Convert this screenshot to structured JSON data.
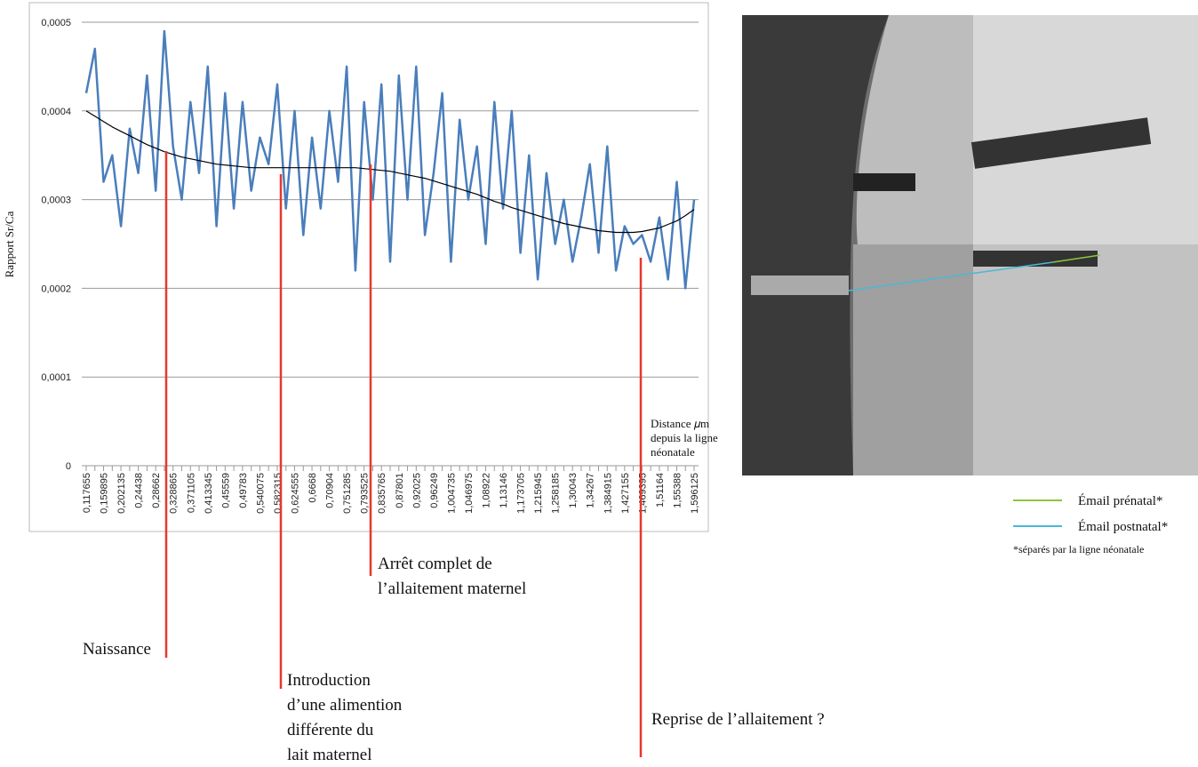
{
  "chart_data": {
    "type": "line",
    "y_label": "Rapport Sr/Ca",
    "x_label": [
      "Distance 𝜇m",
      "depuis la ligne",
      "néonatale"
    ],
    "categories": [
      "0,117655",
      null,
      "0,159895",
      null,
      "0,202135",
      null,
      "0,24438",
      null,
      "0,28662",
      null,
      "0,328865",
      null,
      "0,371105",
      null,
      "0,413345",
      null,
      "0,45559",
      null,
      "0,49783",
      null,
      "0,540075",
      null,
      "0,582315",
      null,
      "0,624555",
      null,
      "0,6668",
      null,
      "0,70904",
      null,
      "0,751285",
      null,
      "0,793525",
      null,
      "0,835765",
      null,
      "0,87801",
      null,
      "0,92025",
      null,
      "0,96249",
      null,
      "1,004735",
      null,
      "1,046975",
      null,
      "1,08922",
      null,
      "1,13146",
      null,
      "1,173705",
      null,
      "1,215945",
      null,
      "1,258185",
      null,
      "1,30043",
      null,
      "1,34267",
      null,
      "1,384915",
      null,
      "1,427155",
      null,
      "1,469395",
      null,
      "1,51164",
      null,
      "1,55388",
      null,
      "1,596125"
    ],
    "series": [
      {
        "color": "#4a7ebb",
        "values": [
          0.00042,
          0.00047,
          0.00032,
          0.00035,
          0.00027,
          0.00038,
          0.00033,
          0.00044,
          0.00031,
          0.00049,
          0.00036,
          0.0003,
          0.00041,
          0.00033,
          0.00045,
          0.00027,
          0.00042,
          0.00029,
          0.00041,
          0.00031,
          0.00037,
          0.00034,
          0.00043,
          0.00029,
          0.0004,
          0.00026,
          0.00037,
          0.00029,
          0.0004,
          0.00032,
          0.00045,
          0.00022,
          0.00041,
          0.0003,
          0.00043,
          0.00023,
          0.00044,
          0.0003,
          0.00045,
          0.00026,
          0.00033,
          0.00042,
          0.00023,
          0.00039,
          0.0003,
          0.00036,
          0.00025,
          0.00041,
          0.00029,
          0.0004,
          0.00024,
          0.00035,
          0.00021,
          0.00033,
          0.00025,
          0.0003,
          0.00023,
          0.00028,
          0.00034,
          0.00024,
          0.00036,
          0.00022,
          0.00027,
          0.00025,
          0.00026,
          0.00023,
          0.00028,
          0.00021,
          0.00032,
          0.0002,
          0.0003
        ]
      },
      {
        "color": "#000000",
        "values": [
          0.0004,
          0.000394,
          0.000388,
          0.000382,
          0.000377,
          0.000372,
          0.000367,
          0.000362,
          0.000358,
          0.000354,
          0.000351,
          0.000348,
          0.000346,
          0.000344,
          0.000342,
          0.00034,
          0.000339,
          0.000338,
          0.000337,
          0.000336,
          0.000336,
          0.000336,
          0.000336,
          0.000336,
          0.000336,
          0.000336,
          0.000336,
          0.000336,
          0.000336,
          0.000336,
          0.000336,
          0.000336,
          0.000335,
          0.000334,
          0.000333,
          0.000332,
          0.00033,
          0.000328,
          0.000326,
          0.000324,
          0.000321,
          0.000318,
          0.000315,
          0.000312,
          0.000309,
          0.000306,
          0.000302,
          0.000298,
          0.000295,
          0.000291,
          0.000288,
          0.000285,
          0.000282,
          0.000279,
          0.000276,
          0.000273,
          0.000271,
          0.000269,
          0.000267,
          0.000265,
          0.000264,
          0.000263,
          0.000263,
          0.000263,
          0.000264,
          0.000266,
          0.000268,
          0.000272,
          0.000276,
          0.000282,
          0.000289
        ]
      }
    ],
    "ylim": [
      0,
      0.0005
    ],
    "yticks": [
      0,
      {
        "value": 0.0001,
        "label": "0,0001"
      },
      {
        "value": 0.0002,
        "label": "0,0002"
      },
      {
        "value": 0.0003,
        "label": "0,0003"
      },
      {
        "value": 0.0004,
        "label": "0,0004"
      },
      {
        "value": 0.0005,
        "label": "0,0005"
      }
    ],
    "grid": true,
    "annotations": [
      {
        "lines": [
          "Naissance"
        ],
        "color": "#e8372c"
      },
      {
        "lines": [
          "Introduction",
          "d’une alimention",
          "différente du",
          "lait maternel"
        ],
        "color": "#e8372c"
      },
      {
        "lines": [
          "Arrêt complet de",
          "l’allaitement maternel"
        ],
        "color": "#e8372c"
      },
      {
        "lines": [
          "Reprise de l’allaitement ?"
        ],
        "color": "#e8372c"
      }
    ]
  },
  "legend": {
    "items": [
      {
        "label": "Émail prénatal*",
        "color": "#8cc63f"
      },
      {
        "label": "Émail postnatal*",
        "color": "#4ab8d8"
      }
    ],
    "note": "*séparés par la ligne néonatale"
  }
}
